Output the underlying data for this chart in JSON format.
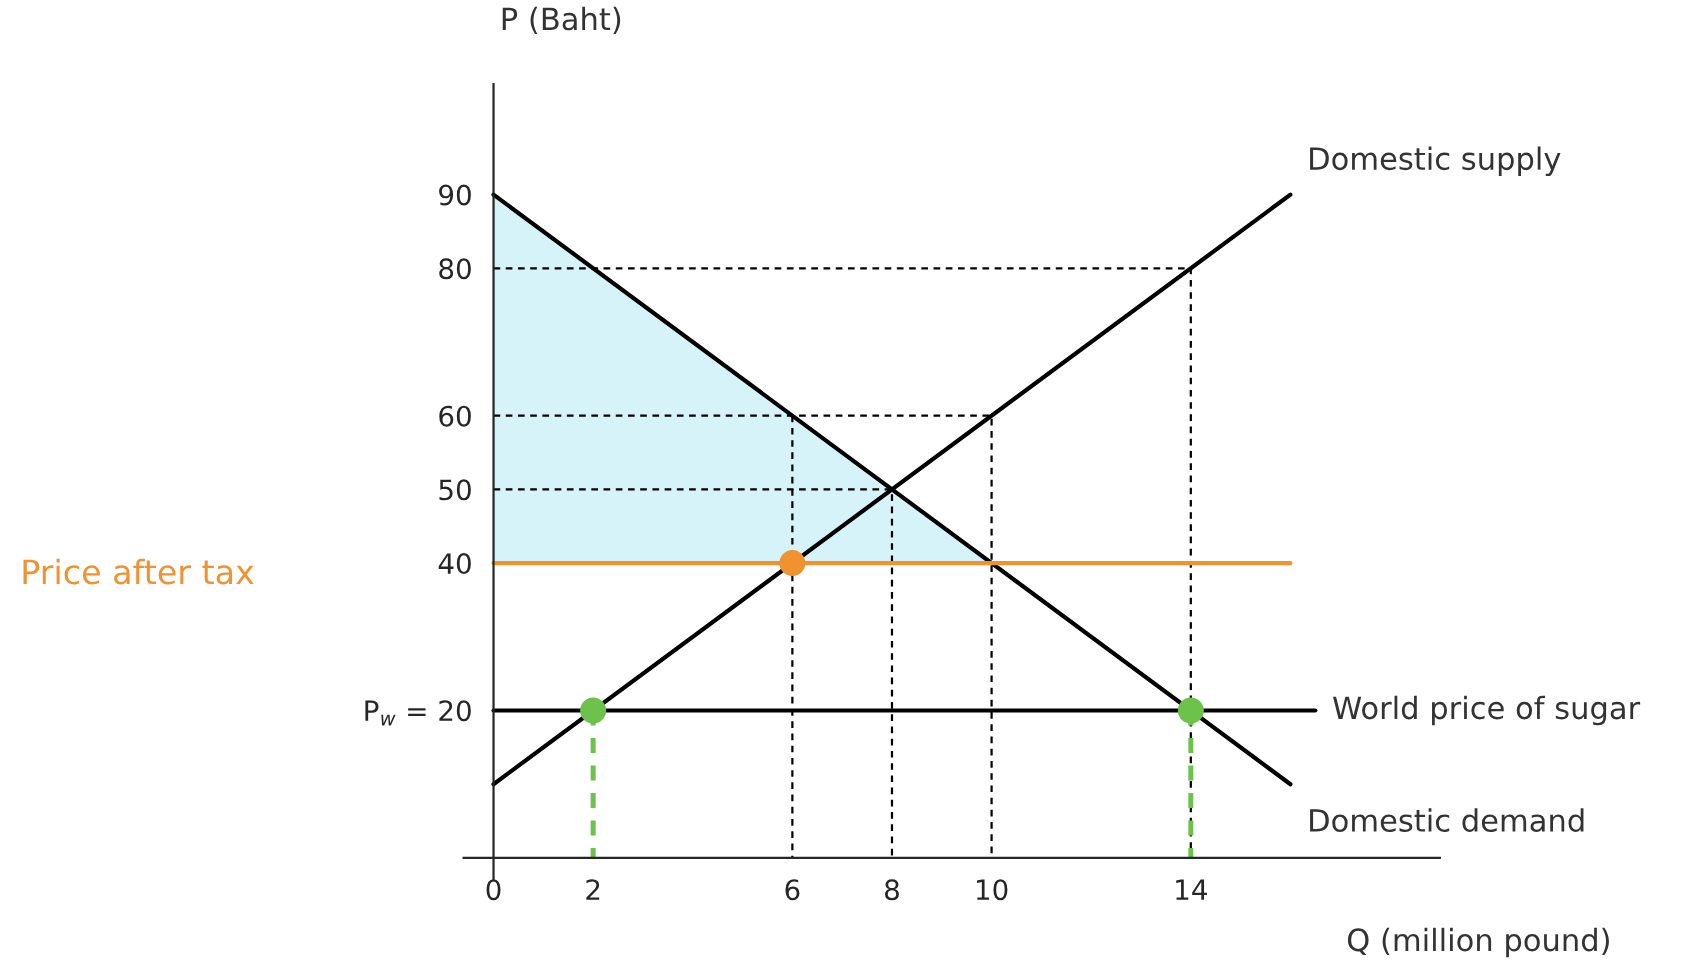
{
  "chart_data": {
    "type": "line",
    "xlabel": "Q (million pound)",
    "ylabel": "P (Baht)",
    "xlim": [
      -0.6,
      19
    ],
    "ylim": [
      -3,
      105
    ],
    "xticks": [
      0,
      2,
      6,
      8,
      10,
      14
    ],
    "yticks": [
      {
        "value": 20,
        "label": "P$_{w}$ = 20"
      },
      40,
      50,
      60,
      80,
      90
    ],
    "grid": false,
    "legend": false,
    "series": [
      {
        "type": "area",
        "color": "#d6f3fa",
        "x": [
          0,
          0,
          10
        ],
        "values": [
          40,
          90,
          40
        ]
      },
      {
        "type": "line",
        "color": "#000000",
        "line_style": "dashed",
        "x": [
          0,
          14,
          14
        ],
        "values": [
          80,
          80,
          0
        ]
      },
      {
        "type": "line",
        "color": "#000000",
        "line_style": "dashed",
        "x": [
          0,
          10,
          10
        ],
        "values": [
          60,
          60,
          0
        ]
      },
      {
        "type": "line",
        "color": "#000000",
        "line_style": "dashed",
        "x": [
          0,
          8,
          8
        ],
        "values": [
          50,
          50,
          0
        ]
      },
      {
        "type": "line",
        "color": "#000000",
        "line_style": "dashed",
        "x": [
          6,
          6
        ],
        "values": [
          60,
          0
        ]
      },
      {
        "type": "line",
        "color": "#6cc24a",
        "line_style": "dashed",
        "x": [
          2,
          2
        ],
        "values": [
          20,
          0
        ]
      },
      {
        "type": "line",
        "color": "#6cc24a",
        "line_style": "dashed",
        "x": [
          14,
          14
        ],
        "values": [
          20,
          0
        ]
      },
      {
        "type": "line",
        "name": "Domestic supply",
        "color": "#000000",
        "line_style": "solid",
        "x": [
          0,
          16
        ],
        "values": [
          10,
          90
        ]
      },
      {
        "type": "line",
        "name": "Domestic demand",
        "color": "#000000",
        "line_style": "solid",
        "x": [
          0,
          16
        ],
        "values": [
          90,
          10
        ]
      },
      {
        "name": "World price of sugar",
        "color": "#000000",
        "line_style": "solid",
        "x": [
          0,
          16.5
        ],
        "values": [
          20,
          20
        ]
      },
      {
        "type": "line",
        "color": "#f0922e",
        "line_style": "solid",
        "x": [
          0,
          16
        ],
        "values": [
          40,
          40
        ]
      },
      {
        "type": "scatter",
        "color": "#f0922e",
        "marker": "circle",
        "x": [
          6
        ],
        "values": [
          40
        ]
      },
      {
        "type": "scatter",
        "color": "#6cc24a",
        "marker": "circle",
        "x": [
          2,
          14
        ],
        "values": [
          20,
          20
        ]
      }
    ],
    "annotations": [
      "Price after tax"
    ]
  }
}
